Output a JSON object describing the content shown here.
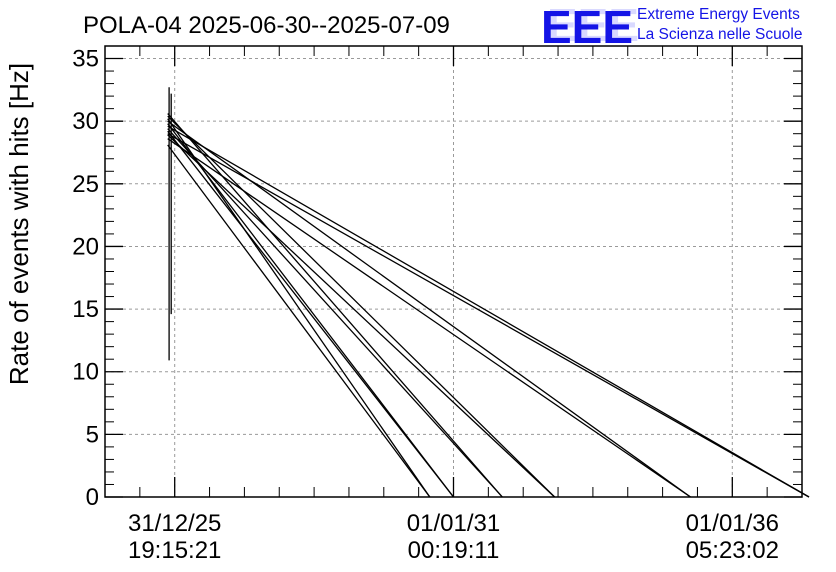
{
  "header": {
    "title": "POLA-04 2025-06-30--2025-07-09",
    "logo_mark": "EEE",
    "logo_line1": "Extreme Energy Events",
    "logo_line2": "La Scienza nelle Scuole",
    "logo_color": "#1414e6"
  },
  "chart_data": {
    "type": "line",
    "title": "POLA-04 2025-06-30--2025-07-09",
    "xlabel": "",
    "ylabel": "Rate of events with hits [Hz]",
    "xlim": [
      0,
      10
    ],
    "ylim": [
      0,
      36
    ],
    "grid": true,
    "legend": "none",
    "line_color": "#000000",
    "x_ticks": [
      {
        "x": 1,
        "label_date": "31/12/25",
        "label_time": "19:15:21"
      },
      {
        "x": 5,
        "label_date": "01/01/31",
        "label_time": "00:19:11"
      },
      {
        "x": 9,
        "label_date": "01/01/36",
        "label_time": "05:23:02"
      }
    ],
    "y_ticks": [
      0,
      5,
      10,
      15,
      20,
      25,
      30,
      35
    ],
    "series": [
      {
        "values": [
          [
            0.9,
            30.2
          ],
          [
            4.66,
            0
          ]
        ]
      },
      {
        "values": [
          [
            0.9,
            29.8
          ],
          [
            5.0,
            0
          ]
        ]
      },
      {
        "values": [
          [
            0.9,
            29.4
          ],
          [
            5.7,
            0
          ]
        ]
      },
      {
        "values": [
          [
            0.9,
            30.4
          ],
          [
            6.45,
            0
          ]
        ]
      },
      {
        "values": [
          [
            0.9,
            28.6
          ],
          [
            8.4,
            0
          ]
        ]
      },
      {
        "values": [
          [
            0.9,
            29.6
          ],
          [
            10.1,
            0
          ]
        ]
      },
      {
        "values": [
          [
            0.9,
            29.0
          ],
          [
            10.1,
            0
          ]
        ]
      },
      {
        "values": [
          [
            0.9,
            28.1
          ],
          [
            4.66,
            0
          ]
        ]
      },
      {
        "values": [
          [
            0.9,
            29.2
          ],
          [
            5.0,
            0
          ]
        ]
      },
      {
        "values": [
          [
            0.9,
            30.6
          ],
          [
            5.7,
            0
          ]
        ]
      },
      {
        "values": [
          [
            0.9,
            28.9
          ],
          [
            6.45,
            0
          ]
        ]
      },
      {
        "values": [
          [
            0.9,
            30.0
          ],
          [
            8.4,
            0
          ]
        ]
      },
      {
        "values": [
          [
            0.92,
            32.7
          ],
          [
            0.92,
            10.9
          ]
        ]
      },
      {
        "values": [
          [
            0.95,
            32.2
          ],
          [
            0.95,
            14.6
          ]
        ]
      }
    ]
  }
}
